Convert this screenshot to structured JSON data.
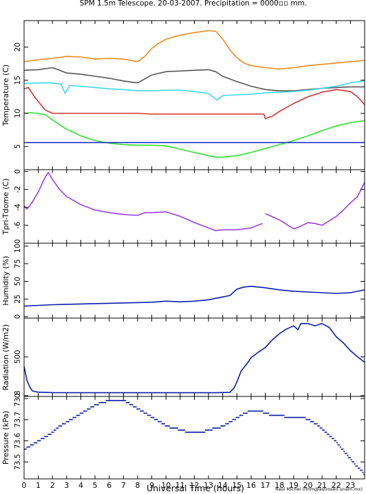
{
  "title": "SPM 1.5m Telescope. 20-03-2007. Precipitation = 0000▫▫ mm.",
  "xlabel": "Universal Time (hours)",
  "credit": "Raul Michel (rmm@astrosen.unam.mx)",
  "chart_data": [
    {
      "type": "line",
      "ylabel": "Temperature (C)",
      "xlim": [
        0,
        24
      ],
      "ylim": [
        1.5,
        24
      ],
      "yticks": [
        5,
        10,
        15,
        20
      ],
      "series": [
        {
          "color": "#ee8a1c",
          "x": [
            0,
            1,
            2,
            3,
            4,
            5,
            6,
            7,
            8,
            8.5,
            9,
            9.5,
            10,
            11,
            12,
            13,
            13.5,
            14,
            14.5,
            15,
            15.5,
            16,
            17,
            18,
            19,
            20,
            21,
            22,
            23,
            24
          ],
          "y": [
            17.8,
            18.1,
            18.3,
            18.6,
            18.5,
            18.2,
            18.3,
            18.2,
            17.8,
            18.6,
            19.8,
            20.6,
            21.2,
            21.8,
            22.2,
            22.5,
            22.4,
            21.2,
            19.6,
            18.4,
            17.6,
            17.2,
            16.9,
            16.7,
            16.9,
            17.2,
            17.4,
            17.6,
            17.8,
            18.0
          ]
        },
        {
          "color": "#555555",
          "x": [
            0,
            1,
            2,
            2.5,
            3,
            4,
            5,
            6,
            7,
            8,
            8.5,
            9,
            10,
            11,
            12,
            13,
            13.5,
            14,
            15,
            16,
            17,
            18,
            19,
            20,
            21,
            22,
            23,
            24
          ],
          "y": [
            16.5,
            16.6,
            16.9,
            16.5,
            16.1,
            15.9,
            15.6,
            15.3,
            14.9,
            14.6,
            15.2,
            15.8,
            16.3,
            16.4,
            16.5,
            16.6,
            16.3,
            15.6,
            14.8,
            14.1,
            13.6,
            13.4,
            13.4,
            13.6,
            13.8,
            13.9,
            14.0,
            14.0
          ]
        },
        {
          "color": "#3ed8e8",
          "x": [
            0,
            1,
            2,
            2.6,
            2.9,
            3.2,
            4,
            5,
            6,
            7,
            8,
            9,
            10,
            11,
            12,
            13,
            13.6,
            14,
            15,
            16,
            17,
            18,
            19,
            20,
            21,
            22,
            23,
            24
          ],
          "y": [
            14.5,
            14.6,
            14.6,
            14.4,
            13.0,
            14.2,
            14.1,
            13.9,
            13.7,
            13.6,
            13.4,
            13.4,
            13.5,
            13.5,
            13.3,
            13.0,
            12.0,
            12.7,
            12.8,
            12.9,
            13.1,
            13.2,
            13.3,
            13.5,
            13.8,
            14.1,
            14.6,
            14.9
          ]
        },
        {
          "color": "#d43333",
          "x": [
            0,
            0.3,
            0.8,
            1.5,
            2,
            3,
            4,
            5,
            6,
            7,
            8,
            9,
            10,
            11,
            12,
            13,
            14,
            15,
            16,
            16.9,
            17,
            17.5,
            18,
            19,
            20,
            21,
            22,
            23,
            23.5,
            24
          ],
          "y": [
            13.7,
            13.9,
            12.3,
            10.5,
            10.0,
            10.0,
            10.0,
            10.0,
            10.0,
            10.0,
            10.0,
            9.9,
            9.9,
            9.9,
            9.9,
            9.9,
            9.9,
            9.9,
            9.9,
            9.9,
            9.2,
            9.6,
            10.3,
            11.5,
            12.5,
            13.2,
            13.6,
            13.3,
            12.5,
            11.3
          ]
        },
        {
          "color": "#2ee02e",
          "x": [
            0,
            0.5,
            1,
            1.5,
            2,
            2.5,
            3,
            4,
            5,
            6,
            7,
            8,
            9,
            10,
            11,
            12,
            13,
            13.5,
            14,
            15,
            16,
            17,
            18,
            19,
            20,
            21,
            22,
            23,
            24
          ],
          "y": [
            10.0,
            10.1,
            10.0,
            9.8,
            9.0,
            8.3,
            7.6,
            6.6,
            5.9,
            5.5,
            5.3,
            5.2,
            5.2,
            5.1,
            4.6,
            4.1,
            3.6,
            3.4,
            3.4,
            3.6,
            4.1,
            4.7,
            5.3,
            5.9,
            6.6,
            7.4,
            8.1,
            8.6,
            8.9
          ]
        },
        {
          "color": "#0a1ec8",
          "x": [
            0,
            24
          ],
          "y": [
            5.6,
            5.6
          ]
        }
      ]
    },
    {
      "type": "line",
      "ylabel": "Tpri-Tdome (C)",
      "xlim": [
        0,
        24
      ],
      "ylim": [
        -8,
        0.2
      ],
      "yticks": [
        0,
        -2,
        -4,
        -6
      ],
      "series": [
        {
          "color": "#9a3ee8",
          "x": [
            0,
            0.2,
            0.5,
            1,
            1.5,
            1.7,
            2,
            2.5,
            3,
            4,
            5,
            6,
            7,
            8,
            8.5,
            9,
            10,
            11,
            12,
            13,
            13.5,
            14,
            15,
            16,
            16.8
          ],
          "y": [
            -3.8,
            -4.2,
            -3.6,
            -2.3,
            -0.6,
            -0.1,
            -0.9,
            -2.0,
            -2.8,
            -3.7,
            -4.3,
            -4.6,
            -4.8,
            -4.9,
            -4.6,
            -4.6,
            -4.5,
            -5.0,
            -5.7,
            -6.3,
            -6.6,
            -6.5,
            -6.5,
            -6.3,
            -5.8
          ]
        },
        {
          "color": "#9a3ee8",
          "x": [
            17,
            18,
            18.5,
            19,
            19.5,
            20,
            20.5,
            21,
            22,
            22.5,
            23,
            23.5,
            24
          ],
          "y": [
            -4.7,
            -5.4,
            -5.9,
            -6.4,
            -6.1,
            -5.7,
            -5.8,
            -6.0,
            -5.0,
            -4.3,
            -3.5,
            -2.8,
            -1.2
          ]
        }
      ]
    },
    {
      "type": "line",
      "ylabel": "Humidity (%)",
      "xlim": [
        0,
        24
      ],
      "ylim": [
        -2,
        104
      ],
      "yticks": [
        0,
        25,
        50,
        75,
        100
      ],
      "series": [
        {
          "color": "#0a1ea8",
          "x": [
            0,
            1,
            2,
            3,
            4,
            5,
            6,
            7,
            8,
            9,
            10,
            11,
            12,
            13,
            13.5,
            14,
            14.5,
            15,
            15.5,
            16,
            17,
            18,
            19,
            20,
            21,
            22,
            23,
            24
          ],
          "y": [
            15,
            16,
            17,
            17.5,
            18,
            18.5,
            19,
            19.5,
            20,
            20.5,
            22,
            21,
            22,
            24,
            26,
            28,
            30,
            39,
            42,
            43,
            41,
            38,
            36,
            35,
            34,
            33,
            34,
            38
          ]
        }
      ]
    },
    {
      "type": "line",
      "ylabel": "Radiation (W/m2)",
      "xlim": [
        0,
        24
      ],
      "ylim": [
        -10,
        1000
      ],
      "yticks": [
        0,
        500
      ],
      "series": [
        {
          "color": "#0a1ea8",
          "x": [
            0,
            0.2,
            0.4,
            0.6,
            1,
            2,
            4,
            6,
            8,
            10,
            12,
            13.5,
            14.5,
            14.8,
            15,
            15.3,
            15.7,
            16,
            16.5,
            17,
            17.5,
            18,
            18.5,
            19,
            19.3,
            19.5,
            20,
            20.5,
            21,
            21.5,
            22,
            22.5,
            23,
            23.5,
            24
          ],
          "y": [
            380,
            200,
            110,
            60,
            45,
            40,
            38,
            38,
            38,
            38,
            38,
            38,
            42,
            100,
            180,
            320,
            410,
            490,
            560,
            620,
            720,
            800,
            860,
            900,
            850,
            930,
            930,
            900,
            930,
            880,
            760,
            680,
            580,
            500,
            430
          ]
        }
      ]
    },
    {
      "type": "scatter",
      "ylabel": "Pressure (kPa)",
      "xlim": [
        0,
        24
      ],
      "ylim": [
        73.42,
        73.81
      ],
      "yticks": [
        73.5,
        73.6,
        73.7,
        73.8
      ],
      "series": [
        {
          "color": "#0a1ea8",
          "x": [
            0,
            0.5,
            1,
            1.5,
            2,
            2.5,
            3,
            3.5,
            4,
            4.5,
            5,
            5.5,
            6,
            6.5,
            7,
            7.5,
            8,
            8.5,
            9,
            9.5,
            10,
            10.5,
            11,
            11.5,
            12,
            12.5,
            13,
            13.5,
            14,
            14.5,
            15,
            15.5,
            16,
            16.5,
            17,
            17.5,
            18,
            18.5,
            19,
            19.5,
            20,
            20.5,
            21,
            21.5,
            22,
            22.5,
            23,
            23.5,
            24
          ],
          "y": [
            73.56,
            73.58,
            73.6,
            73.62,
            73.64,
            73.67,
            73.69,
            73.71,
            73.73,
            73.75,
            73.77,
            73.78,
            73.79,
            73.79,
            73.79,
            73.77,
            73.75,
            73.73,
            73.71,
            73.69,
            73.67,
            73.66,
            73.65,
            73.64,
            73.64,
            73.64,
            73.65,
            73.66,
            73.67,
            73.69,
            73.71,
            73.73,
            73.74,
            73.74,
            73.73,
            73.72,
            73.72,
            73.71,
            73.71,
            73.71,
            73.7,
            73.68,
            73.65,
            73.62,
            73.59,
            73.55,
            73.51,
            73.47,
            73.44
          ]
        }
      ]
    }
  ],
  "xticks": [
    0,
    1,
    2,
    3,
    4,
    5,
    6,
    7,
    8,
    9,
    10,
    11,
    12,
    13,
    14,
    15,
    16,
    17,
    18,
    19,
    20,
    21,
    22,
    23
  ]
}
